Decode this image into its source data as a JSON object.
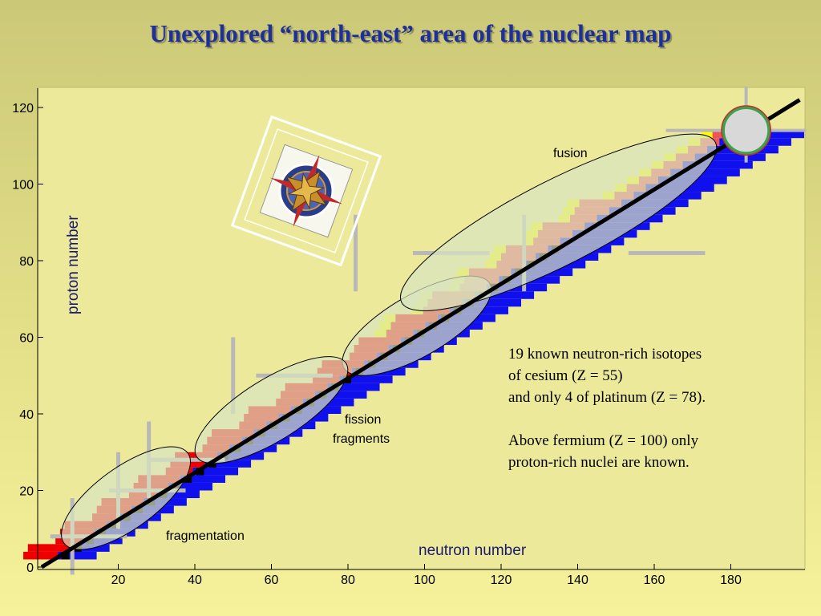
{
  "title": "Unexplored  “north-east”  area of the nuclear map",
  "chart_data": {
    "type": "scatter",
    "xlabel": "neutron  number",
    "ylabel": "proton  number",
    "xlim": [
      0,
      198
    ],
    "ylim": [
      0,
      122
    ],
    "xticks": [
      20,
      40,
      60,
      80,
      100,
      120,
      140,
      160,
      180
    ],
    "yticks": [
      0,
      20,
      40,
      60,
      80,
      100,
      120
    ],
    "legend": "none",
    "colors": {
      "stable": "#000000",
      "neutron_rich": "#1010ee",
      "proton_rich": "#ee0000",
      "alpha_emitters": "#ffff00",
      "fission_emitters": "#ee5555",
      "regions": "#d8e4c0",
      "frame": "#b8b8b8"
    },
    "regions": [
      {
        "label": "fragmentation",
        "center": [
          22,
          18
        ],
        "semi_axes": [
          20,
          8
        ],
        "tilt": 36
      },
      {
        "label": "fission fragments",
        "center": [
          98,
          63
        ],
        "semi_axes": [
          22,
          8
        ],
        "tilt": 30
      },
      {
        "label": "fission fragments",
        "center": [
          60,
          41
        ],
        "semi_axes": [
          23,
          8
        ],
        "tilt": 32
      },
      {
        "label": "fusion",
        "center": [
          135,
          90
        ],
        "semi_axes": [
          46,
          11
        ],
        "tilt": 27
      }
    ],
    "stability_line": {
      "from": [
        0,
        0
      ],
      "to": [
        198,
        122
      ]
    },
    "superheavy_island": {
      "center": [
        184,
        114
      ],
      "radius": 6
    }
  },
  "labels": {
    "fusion": "fusion",
    "fission_line1": "fission",
    "fission_line2": "fragments",
    "fragmentation": "fragmentation"
  },
  "notes": {
    "line1": "19 known neutron-rich isotopes",
    "line2": "of cesium (Z = 55)",
    "line3": "and only 4 of platinum (Z = 78).",
    "line4": "Above fermium (Z = 100) only",
    "line5": "proton-rich nuclei are known."
  },
  "icons": {
    "compass": "compass-rose-icon"
  }
}
